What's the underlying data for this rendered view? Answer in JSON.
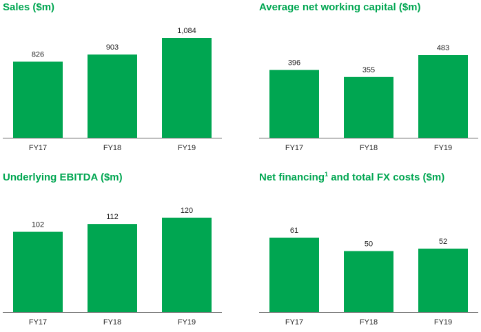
{
  "colors": {
    "bar": "#00a651",
    "title": "#00a651",
    "axis": "#666666",
    "text": "#222222"
  },
  "chart_data": [
    {
      "type": "bar",
      "title": "Sales ($m)",
      "categories": [
        "FY17",
        "FY18",
        "FY19"
      ],
      "values": [
        826,
        903,
        1084
      ],
      "value_labels": [
        "826",
        "903",
        "1,084"
      ],
      "xlabel": "",
      "ylabel": ""
    },
    {
      "type": "bar",
      "title": "Average net working capital ($m)",
      "categories": [
        "FY17",
        "FY18",
        "FY19"
      ],
      "values": [
        396,
        355,
        483
      ],
      "value_labels": [
        "396",
        "355",
        "483"
      ],
      "xlabel": "",
      "ylabel": ""
    },
    {
      "type": "bar",
      "title": "Underlying EBITDA ($m)",
      "categories": [
        "FY17",
        "FY18",
        "FY19"
      ],
      "values": [
        102,
        112,
        120
      ],
      "value_labels": [
        "102",
        "112",
        "120"
      ],
      "xlabel": "",
      "ylabel": ""
    },
    {
      "type": "bar",
      "title": "Net financing",
      "title_superscript": "1",
      "title_suffix": " and total FX costs ($m)",
      "categories": [
        "FY17",
        "FY18",
        "FY19"
      ],
      "values": [
        61,
        50,
        52
      ],
      "value_labels": [
        "61",
        "50",
        "52"
      ],
      "xlabel": "",
      "ylabel": ""
    }
  ]
}
